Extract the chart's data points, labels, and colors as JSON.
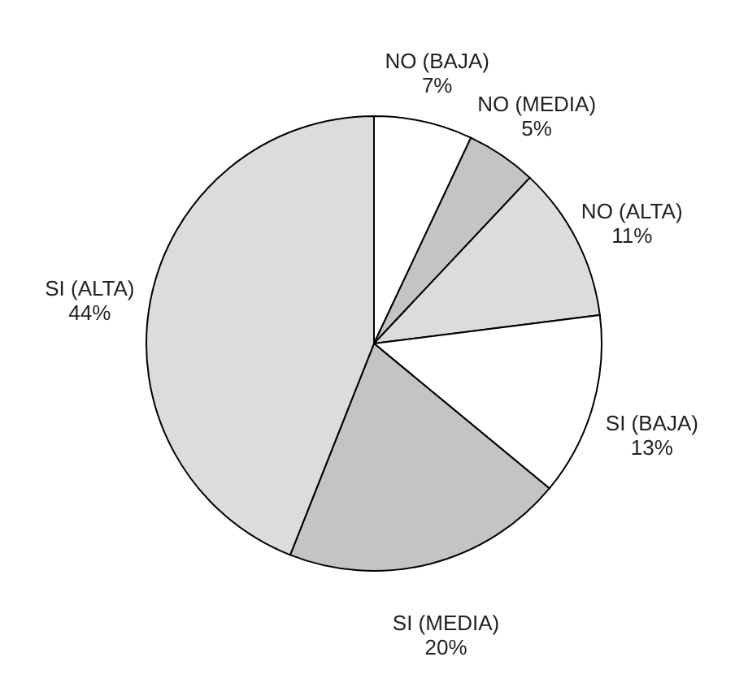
{
  "chart_data": {
    "type": "pie",
    "categories": [
      "NO (BAJA)",
      "NO (MEDIA)",
      "NO (ALTA)",
      "SI (BAJA)",
      "SI (MEDIA)",
      "SI (ALTA)"
    ],
    "values": [
      7,
      5,
      11,
      13,
      20,
      44
    ],
    "value_labels": [
      "7%",
      "5%",
      "11%",
      "13%",
      "20%",
      "44%"
    ],
    "colors": [
      "#ffffff",
      "#c4c4c4",
      "#dcdcdc",
      "#ffffff",
      "#c4c4c4",
      "#dcdcdc"
    ]
  }
}
